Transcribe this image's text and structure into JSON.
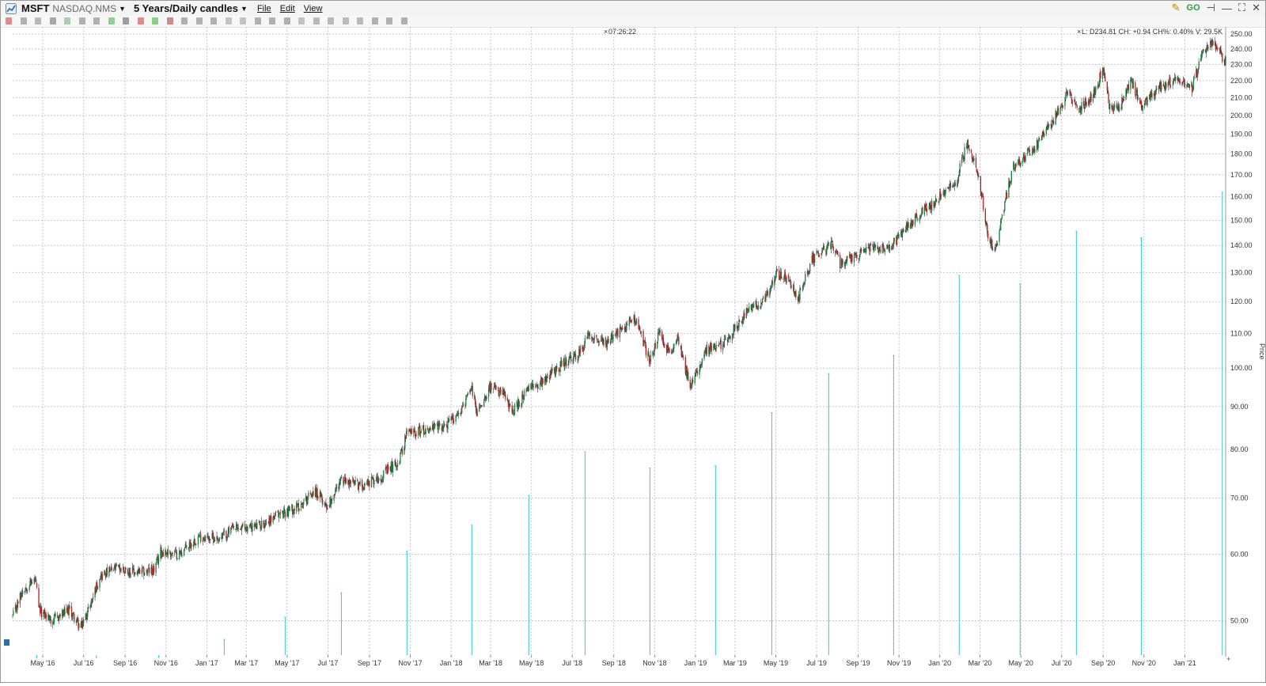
{
  "window": {
    "symbol": "MSFT",
    "exchange": "NASDAQ.NMS",
    "period": "5 Years/Daily candles",
    "menu": {
      "file": "File",
      "edit": "Edit",
      "view": "View"
    },
    "controls": [
      "pencil-icon",
      "link-icon",
      "pin-icon",
      "minimize-icon",
      "maximize-icon",
      "close-icon"
    ]
  },
  "toolbar_icons": [
    "cross-icon",
    "crosshair-icon",
    "pencil-icon",
    "grid-icon",
    "zoom-icon",
    "refresh-icon",
    "clock-icon",
    "palette-icon",
    "dropdown-icon",
    "line-icon",
    "circle-icon",
    "target-icon",
    "ruler-icon",
    "fib-icon",
    "channel-icon",
    "undo-icon",
    "redo-icon",
    "select-icon",
    "zoom-in-icon",
    "zoom-out-icon",
    "reset-icon",
    "bars-icon",
    "candles-icon",
    "compare-icon",
    "save-icon",
    "refresh2-icon",
    "tools-icon",
    "more-icon"
  ],
  "overlay": {
    "time": "07:26:22",
    "quote": "L: D234.81 CH: +0.94 CH%: 0.40% V: 29.5K"
  },
  "colors": {
    "up": "#15803d",
    "down": "#b91c1c",
    "wick": "#333333",
    "volume": "#33c9d6",
    "grid": "#c8c8c8"
  },
  "chart_data": {
    "type": "candlestick",
    "title": "",
    "ylabel": "Price",
    "yscale": "log",
    "ylim": [
      45.5,
      255
    ],
    "y_ticks": [
      50,
      60,
      70,
      80,
      90,
      100,
      110,
      120,
      130,
      140,
      150,
      160,
      170,
      180,
      190,
      200,
      210,
      220,
      230,
      240,
      250
    ],
    "y_tick_labels": [
      "50.00",
      "60.00",
      "70.00",
      "80.00",
      "90.00",
      "100.00",
      "110.00",
      "120.00",
      "130.00",
      "140.00",
      "150.00",
      "160.00",
      "170.00",
      "180.00",
      "190.00",
      "200.00",
      "210.00",
      "220.00",
      "230.00",
      "240.00",
      "250.00"
    ],
    "x_ticks": [
      "May '16",
      "Jul '16",
      "Sep '16",
      "Nov '16",
      "Jan '17",
      "Mar '17",
      "May '17",
      "Jul '17",
      "Sep '17",
      "Nov '17",
      "Jan '18",
      "Mar '18",
      "May '18",
      "Jul '18",
      "Sep '18",
      "Nov '18",
      "Jan '19",
      "Mar '19",
      "May '19",
      "Jul '19",
      "Sep '19",
      "Nov '19",
      "Jan '20",
      "Mar '20",
      "May '20",
      "Jul '20",
      "Sep '20",
      "Nov '20",
      "Jan '21"
    ],
    "x_tick_dates": [
      "2016-05-01",
      "2016-07-01",
      "2016-09-01",
      "2016-11-01",
      "2017-01-01",
      "2017-03-01",
      "2017-05-01",
      "2017-07-01",
      "2017-09-01",
      "2017-11-01",
      "2018-01-01",
      "2018-03-01",
      "2018-05-01",
      "2018-07-01",
      "2018-09-01",
      "2018-11-01",
      "2019-01-01",
      "2019-03-01",
      "2019-05-01",
      "2019-07-01",
      "2019-09-01",
      "2019-11-01",
      "2020-01-01",
      "2020-03-01",
      "2020-05-01",
      "2020-07-01",
      "2020-09-01",
      "2020-11-01",
      "2021-01-01"
    ],
    "x_range": [
      "2016-03-17",
      "2021-03-03"
    ],
    "price_path": [
      [
        "2016-03-17",
        50.5
      ],
      [
        "2016-04-01",
        54.5
      ],
      [
        "2016-04-20",
        56.0
      ],
      [
        "2016-04-25",
        51.5
      ],
      [
        "2016-05-15",
        50.0
      ],
      [
        "2016-06-10",
        51.5
      ],
      [
        "2016-06-27",
        49.0
      ],
      [
        "2016-07-10",
        52.0
      ],
      [
        "2016-07-25",
        56.5
      ],
      [
        "2016-08-20",
        57.8
      ],
      [
        "2016-09-20",
        57.0
      ],
      [
        "2016-10-15",
        57.5
      ],
      [
        "2016-10-24",
        60.5
      ],
      [
        "2016-11-20",
        60.0
      ],
      [
        "2016-12-20",
        63.0
      ],
      [
        "2017-01-20",
        62.7
      ],
      [
        "2017-02-08",
        64.2
      ],
      [
        "2017-03-20",
        64.9
      ],
      [
        "2017-04-20",
        67.0
      ],
      [
        "2017-05-20",
        68.5
      ],
      [
        "2017-06-10",
        71.5
      ],
      [
        "2017-06-30",
        68.5
      ],
      [
        "2017-07-20",
        73.5
      ],
      [
        "2017-08-20",
        72.5
      ],
      [
        "2017-09-20",
        74.5
      ],
      [
        "2017-10-15",
        77.5
      ],
      [
        "2017-10-27",
        83.8
      ],
      [
        "2017-11-25",
        84.5
      ],
      [
        "2017-12-25",
        85.5
      ],
      [
        "2018-01-15",
        89.0
      ],
      [
        "2018-02-01",
        94.5
      ],
      [
        "2018-02-08",
        88.5
      ],
      [
        "2018-02-27",
        95.0
      ],
      [
        "2018-03-20",
        93.0
      ],
      [
        "2018-04-02",
        88.5
      ],
      [
        "2018-04-25",
        94.0
      ],
      [
        "2018-05-20",
        97.0
      ],
      [
        "2018-06-15",
        101.0
      ],
      [
        "2018-07-10",
        103.5
      ],
      [
        "2018-07-26",
        110.0
      ],
      [
        "2018-08-20",
        107.0
      ],
      [
        "2018-09-15",
        111.5
      ],
      [
        "2018-10-03",
        115.0
      ],
      [
        "2018-10-24",
        102.0
      ],
      [
        "2018-11-08",
        110.0
      ],
      [
        "2018-11-25",
        103.0
      ],
      [
        "2018-12-05",
        110.0
      ],
      [
        "2018-12-24",
        94.5
      ],
      [
        "2019-01-15",
        105.0
      ],
      [
        "2019-02-10",
        106.5
      ],
      [
        "2019-03-20",
        117.0
      ],
      [
        "2019-04-15",
        120.5
      ],
      [
        "2019-05-01",
        130.0
      ],
      [
        "2019-05-20",
        127.0
      ],
      [
        "2019-06-03",
        121.0
      ],
      [
        "2019-06-25",
        135.0
      ],
      [
        "2019-07-25",
        140.5
      ],
      [
        "2019-08-05",
        133.0
      ],
      [
        "2019-09-20",
        139.0
      ],
      [
        "2019-10-15",
        138.5
      ],
      [
        "2019-11-15",
        148.0
      ],
      [
        "2019-12-20",
        157.0
      ],
      [
        "2020-01-25",
        166.0
      ],
      [
        "2020-02-10",
        185.0
      ],
      [
        "2020-02-21",
        178.0
      ],
      [
        "2020-03-01",
        166.0
      ],
      [
        "2020-03-12",
        145.0
      ],
      [
        "2020-03-23",
        137.0
      ],
      [
        "2020-04-05",
        155.0
      ],
      [
        "2020-04-20",
        174.0
      ],
      [
        "2020-05-20",
        183.0
      ],
      [
        "2020-06-15",
        195.0
      ],
      [
        "2020-07-10",
        213.0
      ],
      [
        "2020-07-25",
        203.0
      ],
      [
        "2020-08-15",
        210.0
      ],
      [
        "2020-09-01",
        228.0
      ],
      [
        "2020-09-10",
        205.0
      ],
      [
        "2020-09-25",
        203.0
      ],
      [
        "2020-10-12",
        220.0
      ],
      [
        "2020-10-30",
        205.0
      ],
      [
        "2020-11-20",
        214.0
      ],
      [
        "2020-12-20",
        222.0
      ],
      [
        "2021-01-12",
        215.0
      ],
      [
        "2021-01-28",
        240.0
      ],
      [
        "2021-02-12",
        244.0
      ],
      [
        "2021-02-20",
        238.0
      ],
      [
        "2021-03-03",
        232.0
      ]
    ],
    "volume_spikes": [
      [
        "2016-04-22",
        45.2
      ],
      [
        "2016-07-20",
        45.2
      ],
      [
        "2016-10-21",
        45.2
      ],
      [
        "2017-01-27",
        47.5
      ],
      [
        "2017-04-28",
        50.5
      ],
      [
        "2017-07-21",
        54.0
      ],
      [
        "2017-10-27",
        60.5
      ],
      [
        "2018-02-01",
        65.0
      ],
      [
        "2018-04-27",
        70.5
      ],
      [
        "2018-07-20",
        79.5
      ],
      [
        "2018-10-25",
        76.0
      ],
      [
        "2019-01-31",
        76.5
      ],
      [
        "2019-04-25",
        88.5
      ],
      [
        "2019-07-19",
        98.5
      ],
      [
        "2019-10-24",
        103.5
      ],
      [
        "2020-01-30",
        129.0
      ],
      [
        "2020-04-30",
        126.0
      ],
      [
        "2020-07-23",
        145.5
      ],
      [
        "2020-10-28",
        143.0
      ],
      [
        "2021-02-26",
        162.0
      ]
    ]
  }
}
